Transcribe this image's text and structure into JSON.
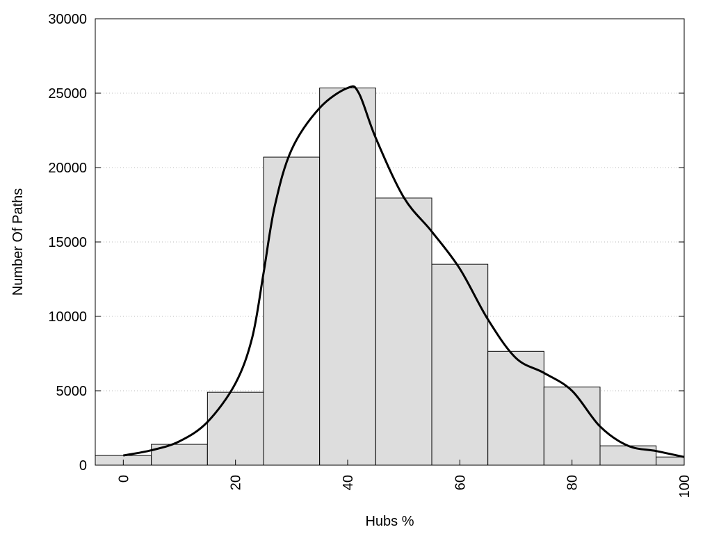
{
  "chart_data": {
    "type": "bar",
    "title": "",
    "xlabel": "Hubs %",
    "ylabel": "Number Of Paths",
    "xlim": [
      -5,
      100
    ],
    "ylim": [
      0,
      30000
    ],
    "x_ticks": [
      "0",
      "20",
      "40",
      "60",
      "80",
      "100"
    ],
    "y_ticks": [
      "0",
      "5000",
      "10000",
      "15000",
      "20000",
      "25000",
      "30000"
    ],
    "grid": "horizontal dotted",
    "bar_color": "#dddddd",
    "bin_width": 10,
    "bins": [
      {
        "x": 0,
        "value": 650
      },
      {
        "x": 10,
        "value": 1400
      },
      {
        "x": 20,
        "value": 4900
      },
      {
        "x": 30,
        "value": 20700
      },
      {
        "x": 40,
        "value": 25350
      },
      {
        "x": 50,
        "value": 17950
      },
      {
        "x": 60,
        "value": 13500
      },
      {
        "x": 70,
        "value": 7650
      },
      {
        "x": 80,
        "value": 5250
      },
      {
        "x": 90,
        "value": 1300
      },
      {
        "x": 100,
        "value": 550
      }
    ],
    "curve": {
      "x": [
        0,
        5,
        10,
        15,
        20,
        23,
        25,
        27,
        30,
        35,
        40,
        42,
        45,
        50,
        55,
        60,
        65,
        70,
        75,
        80,
        85,
        90,
        95,
        100
      ],
      "y": [
        650,
        1000,
        1600,
        2900,
        5500,
        8600,
        12900,
        17400,
        21200,
        24000,
        25350,
        25000,
        22000,
        18000,
        15700,
        13200,
        9800,
        7200,
        6200,
        5000,
        2600,
        1300,
        950,
        550
      ]
    }
  }
}
